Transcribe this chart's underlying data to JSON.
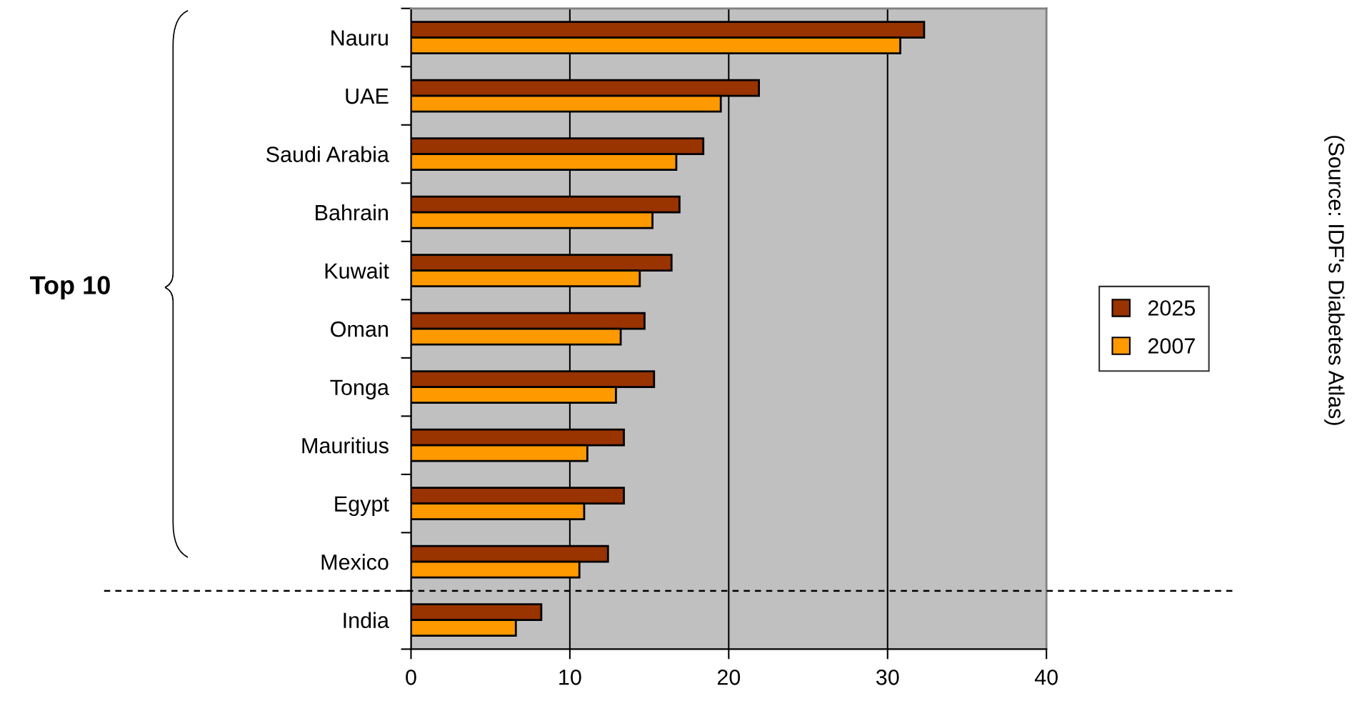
{
  "chart_data": {
    "type": "bar",
    "orientation": "horizontal",
    "categories": [
      "Nauru",
      "UAE",
      "Saudi Arabia",
      "Bahrain",
      "Kuwait",
      "Oman",
      "Tonga",
      "Mauritius",
      "Egypt",
      "Mexico",
      "India"
    ],
    "series": [
      {
        "name": "2025",
        "color": "#993300",
        "values": [
          32.3,
          21.9,
          18.4,
          16.9,
          16.4,
          14.7,
          15.3,
          13.4,
          13.4,
          12.4,
          8.2
        ]
      },
      {
        "name": "2007",
        "color": "#ff9900",
        "values": [
          30.8,
          19.5,
          16.7,
          15.2,
          14.4,
          13.2,
          12.9,
          11.1,
          10.9,
          10.6,
          6.6
        ]
      }
    ],
    "xlim": [
      0,
      40
    ],
    "xticks": [
      0,
      10,
      20,
      30,
      40
    ],
    "grid": "x",
    "legend": "right",
    "annotations": [
      "Top 10",
      "(Source: IDF's Diabetes Atlas)"
    ]
  }
}
